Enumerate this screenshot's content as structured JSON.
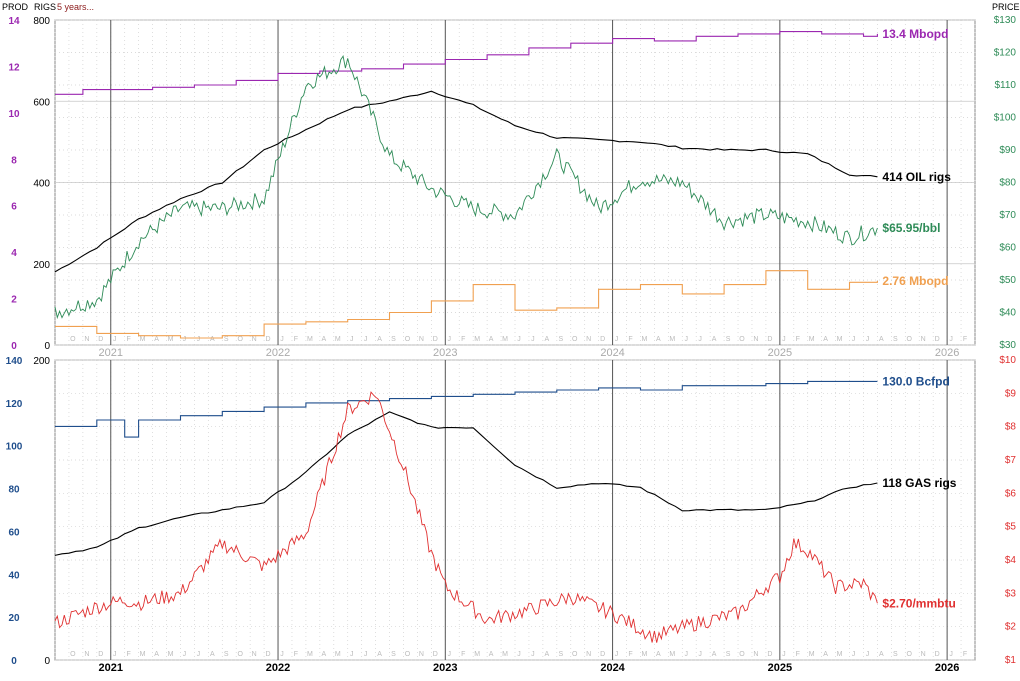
{
  "header": {
    "prod": "PROD",
    "rigs": "RIGS",
    "range": "5 years...",
    "price": "PRICE"
  },
  "colors": {
    "oil_prod": "#9b27b0",
    "oil_rigs": "#000000",
    "oil_price": "#2e8b57",
    "ngl": "#f0a050",
    "gas_prod": "#1f4e8c",
    "gas_rigs": "#000000",
    "gas_price": "#e03030",
    "grid": "#d0d0d0",
    "year_line": "#555555"
  },
  "chart_data": [
    {
      "type": "line",
      "title": "",
      "years": [
        "2021",
        "2022",
        "2023",
        "2024",
        "2025",
        "2026"
      ],
      "month_ticks": [
        "O",
        "N",
        "D",
        "J",
        "F",
        "M",
        "A",
        "M",
        "J",
        "J",
        "A",
        "S",
        "O",
        "N",
        "D",
        "J",
        "F",
        "M",
        "A",
        "M",
        "J",
        "J",
        "A",
        "S",
        "O",
        "N",
        "D",
        "J",
        "F",
        "M",
        "A",
        "M",
        "J",
        "J",
        "A",
        "S",
        "O",
        "N",
        "D",
        "J",
        "F",
        "M",
        "A",
        "M",
        "J",
        "J",
        "A",
        "S",
        "O",
        "N",
        "D",
        "J",
        "F",
        "M",
        "A",
        "M",
        "J",
        "J",
        "A",
        "S",
        "O",
        "N",
        "D",
        "J",
        "F",
        "M"
      ],
      "x_range": [
        "2020-09",
        "2026-03"
      ],
      "axes": {
        "prod": {
          "label": "PROD",
          "min": 0,
          "max": 14,
          "ticks": [
            "0",
            "2",
            "4",
            "6",
            "8",
            "10",
            "12",
            "14"
          ]
        },
        "rigs": {
          "label": "RIGS",
          "min": 0,
          "max": 800,
          "ticks": [
            "0",
            "200",
            "400",
            "600",
            "800"
          ]
        },
        "price": {
          "label": "PRICE",
          "min": 30,
          "max": 130,
          "ticks": [
            "$30",
            "$40",
            "$50",
            "$60",
            "$70",
            "$80",
            "$90",
            "$100",
            "$110",
            "$120",
            "$130"
          ]
        }
      },
      "series": [
        {
          "name": "13.4 Mbopd",
          "axis": "prod",
          "style": "step",
          "x": [
            "2020-09",
            "2020-11",
            "2021-01",
            "2021-04",
            "2021-07",
            "2021-10",
            "2022-01",
            "2022-04",
            "2022-07",
            "2022-10",
            "2023-01",
            "2023-04",
            "2023-07",
            "2023-10",
            "2024-01",
            "2024-04",
            "2024-07",
            "2024-10",
            "2025-01",
            "2025-04",
            "2025-07",
            "2025-08"
          ],
          "y": [
            10.8,
            11.0,
            11.0,
            11.1,
            11.2,
            11.4,
            11.7,
            11.8,
            11.9,
            12.1,
            12.3,
            12.5,
            12.8,
            13.0,
            13.2,
            13.1,
            13.3,
            13.4,
            13.5,
            13.4,
            13.3,
            13.4
          ]
        },
        {
          "name": "414 OIL rigs",
          "axis": "rigs",
          "x": [
            "2020-09",
            "2020-12",
            "2021-03",
            "2021-06",
            "2021-09",
            "2021-12",
            "2022-03",
            "2022-06",
            "2022-09",
            "2022-12",
            "2023-03",
            "2023-06",
            "2023-09",
            "2023-12",
            "2024-03",
            "2024-06",
            "2024-09",
            "2024-12",
            "2025-03",
            "2025-06",
            "2025-08"
          ],
          "y": [
            180,
            240,
            310,
            360,
            400,
            480,
            530,
            580,
            600,
            625,
            590,
            540,
            510,
            505,
            500,
            485,
            480,
            480,
            470,
            420,
            414
          ]
        },
        {
          "name": "$65.95/bbl",
          "axis": "price",
          "x": [
            "2020-09",
            "2020-12",
            "2021-03",
            "2021-06",
            "2021-09",
            "2021-12",
            "2022-03",
            "2022-06",
            "2022-09",
            "2022-12",
            "2023-03",
            "2023-06",
            "2023-09",
            "2023-12",
            "2024-03",
            "2024-06",
            "2024-09",
            "2024-12",
            "2025-03",
            "2025-06",
            "2025-08"
          ],
          "y": [
            40,
            44,
            62,
            72,
            72,
            75,
            110,
            118,
            88,
            78,
            72,
            70,
            88,
            72,
            81,
            80,
            68,
            70,
            68,
            63,
            66
          ]
        },
        {
          "name": "2.76 Mbopd",
          "axis": "prod",
          "style": "step",
          "x": [
            "2020-09",
            "2020-12",
            "2021-03",
            "2021-06",
            "2021-09",
            "2021-12",
            "2022-03",
            "2022-06",
            "2022-09",
            "2022-12",
            "2023-03",
            "2023-06",
            "2023-09",
            "2023-12",
            "2024-03",
            "2024-06",
            "2024-09",
            "2024-12",
            "2025-03",
            "2025-06",
            "2025-08"
          ],
          "y": [
            0.8,
            0.5,
            0.4,
            0.3,
            0.4,
            0.9,
            1.0,
            1.1,
            1.4,
            1.9,
            2.6,
            1.5,
            1.6,
            2.4,
            2.6,
            2.2,
            2.6,
            3.2,
            2.4,
            2.7,
            2.76
          ]
        }
      ]
    },
    {
      "type": "line",
      "title": "",
      "years": [
        "2021",
        "2022",
        "2023",
        "2024",
        "2025",
        "2026"
      ],
      "x_range": [
        "2020-09",
        "2026-03"
      ],
      "axes": {
        "prod": {
          "min": 0,
          "max": 140,
          "ticks": [
            "0",
            "20",
            "40",
            "60",
            "80",
            "100",
            "120",
            "140"
          ]
        },
        "rigs": {
          "min": 0,
          "max": 200,
          "ticks": [
            "0",
            "200"
          ]
        },
        "price": {
          "min": 1,
          "max": 10,
          "ticks": [
            "$1",
            "$2",
            "$3",
            "$4",
            "$5",
            "$6",
            "$7",
            "$8",
            "$9",
            "$10"
          ]
        }
      },
      "series": [
        {
          "name": "130.0 Bcfpd",
          "axis": "prod",
          "style": "step",
          "x": [
            "2020-09",
            "2020-12",
            "2021-02",
            "2021-03",
            "2021-06",
            "2021-09",
            "2021-12",
            "2022-03",
            "2022-06",
            "2022-09",
            "2022-12",
            "2023-03",
            "2023-06",
            "2023-09",
            "2023-12",
            "2024-03",
            "2024-06",
            "2024-09",
            "2024-12",
            "2025-03",
            "2025-06",
            "2025-08"
          ],
          "y": [
            109,
            112,
            104,
            112,
            114,
            116,
            118,
            120,
            121,
            122,
            123,
            124,
            125,
            126,
            127,
            126,
            128,
            128,
            129,
            130,
            130,
            130
          ]
        },
        {
          "name": "118 GAS rigs",
          "axis": "rigs",
          "x": [
            "2020-09",
            "2020-12",
            "2021-03",
            "2021-06",
            "2021-09",
            "2021-12",
            "2022-03",
            "2022-06",
            "2022-09",
            "2022-12",
            "2023-03",
            "2023-06",
            "2023-09",
            "2023-12",
            "2024-03",
            "2024-06",
            "2024-09",
            "2024-12",
            "2025-03",
            "2025-06",
            "2025-08"
          ],
          "y": [
            70,
            75,
            88,
            95,
            100,
            105,
            125,
            150,
            165,
            155,
            155,
            130,
            115,
            118,
            115,
            100,
            100,
            100,
            105,
            115,
            118
          ]
        },
        {
          "name": "$2.70/mmbtu",
          "axis": "price",
          "x": [
            "2020-09",
            "2020-12",
            "2021-02",
            "2021-03",
            "2021-06",
            "2021-09",
            "2021-12",
            "2022-03",
            "2022-06",
            "2022-08",
            "2022-10",
            "2022-12",
            "2023-01",
            "2023-04",
            "2023-07",
            "2023-10",
            "2024-01",
            "2024-04",
            "2024-07",
            "2024-10",
            "2024-12",
            "2025-01",
            "2025-02",
            "2025-03",
            "2025-05",
            "2025-07",
            "2025-08"
          ],
          "y": [
            2.1,
            2.6,
            2.8,
            2.7,
            3.0,
            4.5,
            3.8,
            4.8,
            8.5,
            9.0,
            6.8,
            4.2,
            3.2,
            2.2,
            2.5,
            2.9,
            2.4,
            1.7,
            2.1,
            2.4,
            3.2,
            3.5,
            4.5,
            4.3,
            3.2,
            3.3,
            2.7
          ]
        }
      ]
    }
  ]
}
